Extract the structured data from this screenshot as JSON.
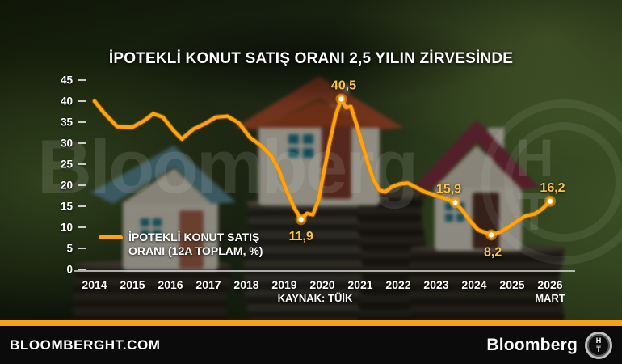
{
  "title": "İPOTEKLİ KONUT SATIŞ ORANI 2,5 YILIN ZİRVESİNDE",
  "legend": {
    "line1": "İPOTEKLİ KONUT SATIŞ",
    "line2": "ORANI (12A TOPLAM, %)"
  },
  "source": "KAYNAK: TÜİK",
  "watermark": {
    "text": "Bloomberg",
    "logo_top": "H",
    "logo_bottom": "T"
  },
  "footer": {
    "left": "BLOOMBERGHT.COM",
    "brand": "Bloomberg",
    "logo_top": "H",
    "logo_bottom": "T"
  },
  "colors": {
    "line": "#FFA30F",
    "line_glow": "#DD7E00",
    "annotation": "#FFC43B",
    "axis_text": "#FFFFFF",
    "tick_dash": "#CCCCCC",
    "axis_line": "rgba(255,255,255,0.85)",
    "marker_fill": "#FFFFFF",
    "footer_strip": "#F6A11C",
    "footer_bg": "#0B0B0B"
  },
  "chart_data": {
    "type": "line",
    "title": "İPOTEKLİ KONUT SATIŞ ORANI 2,5 YILIN ZİRVESİNDE",
    "xlabel": "",
    "ylabel": "",
    "ylim": [
      0,
      45
    ],
    "xlim": [
      2014,
      2026.2
    ],
    "grid": false,
    "legend_position": "lower-left",
    "y_ticks": [
      0,
      5,
      10,
      15,
      20,
      25,
      30,
      35,
      40,
      45
    ],
    "x_ticks": [
      {
        "x": 2014,
        "label": "2014"
      },
      {
        "x": 2015,
        "label": "2015"
      },
      {
        "x": 2016,
        "label": "2016"
      },
      {
        "x": 2017,
        "label": "2017"
      },
      {
        "x": 2018,
        "label": "2018"
      },
      {
        "x": 2019,
        "label": "2019"
      },
      {
        "x": 2020,
        "label": "2020"
      },
      {
        "x": 2021,
        "label": "2021"
      },
      {
        "x": 2022,
        "label": "2022"
      },
      {
        "x": 2023,
        "label": "2023"
      },
      {
        "x": 2024,
        "label": "2024"
      },
      {
        "x": 2025,
        "label": "2025"
      },
      {
        "x": 2026,
        "label": "2026",
        "sub": "MART"
      }
    ],
    "series": [
      {
        "name": "İPOTEKLİ KONUT SATIŞ ORANI (12A TOPLAM, %)",
        "points": [
          [
            2014.0,
            40.0
          ],
          [
            2014.25,
            37.2
          ],
          [
            2014.6,
            33.9
          ],
          [
            2015.0,
            33.8
          ],
          [
            2015.3,
            35.3
          ],
          [
            2015.55,
            37.0
          ],
          [
            2015.8,
            36.2
          ],
          [
            2016.1,
            32.8
          ],
          [
            2016.3,
            31.0
          ],
          [
            2016.6,
            33.3
          ],
          [
            2016.9,
            34.6
          ],
          [
            2017.2,
            36.2
          ],
          [
            2017.5,
            36.4
          ],
          [
            2017.8,
            34.8
          ],
          [
            2018.1,
            31.3
          ],
          [
            2018.4,
            29.3
          ],
          [
            2018.65,
            27.0
          ],
          [
            2018.85,
            23.8
          ],
          [
            2019.05,
            19.0
          ],
          [
            2019.25,
            14.8
          ],
          [
            2019.44,
            11.9
          ],
          [
            2019.6,
            13.3
          ],
          [
            2019.75,
            13.0
          ],
          [
            2019.9,
            16.5
          ],
          [
            2020.05,
            23.5
          ],
          [
            2020.2,
            30.5
          ],
          [
            2020.35,
            36.5
          ],
          [
            2020.5,
            40.5
          ],
          [
            2020.62,
            38.5
          ],
          [
            2020.75,
            38.7
          ],
          [
            2020.9,
            34.5
          ],
          [
            2021.05,
            29.8
          ],
          [
            2021.2,
            25.3
          ],
          [
            2021.35,
            21.3
          ],
          [
            2021.5,
            18.9
          ],
          [
            2021.65,
            18.4
          ],
          [
            2021.85,
            19.7
          ],
          [
            2022.05,
            20.3
          ],
          [
            2022.25,
            20.5
          ],
          [
            2022.45,
            19.6
          ],
          [
            2022.7,
            18.4
          ],
          [
            2022.95,
            17.7
          ],
          [
            2023.25,
            16.8
          ],
          [
            2023.5,
            15.9
          ],
          [
            2023.7,
            13.9
          ],
          [
            2023.9,
            11.4
          ],
          [
            2024.1,
            9.4
          ],
          [
            2024.45,
            8.2
          ],
          [
            2024.7,
            8.9
          ],
          [
            2024.95,
            10.3
          ],
          [
            2025.15,
            11.6
          ],
          [
            2025.35,
            12.7
          ],
          [
            2025.6,
            13.2
          ],
          [
            2025.8,
            14.4
          ],
          [
            2026.0,
            16.2
          ]
        ]
      }
    ],
    "annotations": [
      {
        "x": 2020.5,
        "y": 40.5,
        "label": "40,5",
        "pos": "above",
        "dx": 3
      },
      {
        "x": 2019.44,
        "y": 11.9,
        "label": "11,9",
        "pos": "below",
        "dx": 0
      },
      {
        "x": 2023.5,
        "y": 15.9,
        "label": "15,9",
        "pos": "above",
        "dx": -8
      },
      {
        "x": 2024.45,
        "y": 8.2,
        "label": "8,2",
        "pos": "below",
        "dx": 2
      },
      {
        "x": 2026.0,
        "y": 16.2,
        "label": "16,2",
        "pos": "above",
        "dx": 3
      }
    ]
  }
}
